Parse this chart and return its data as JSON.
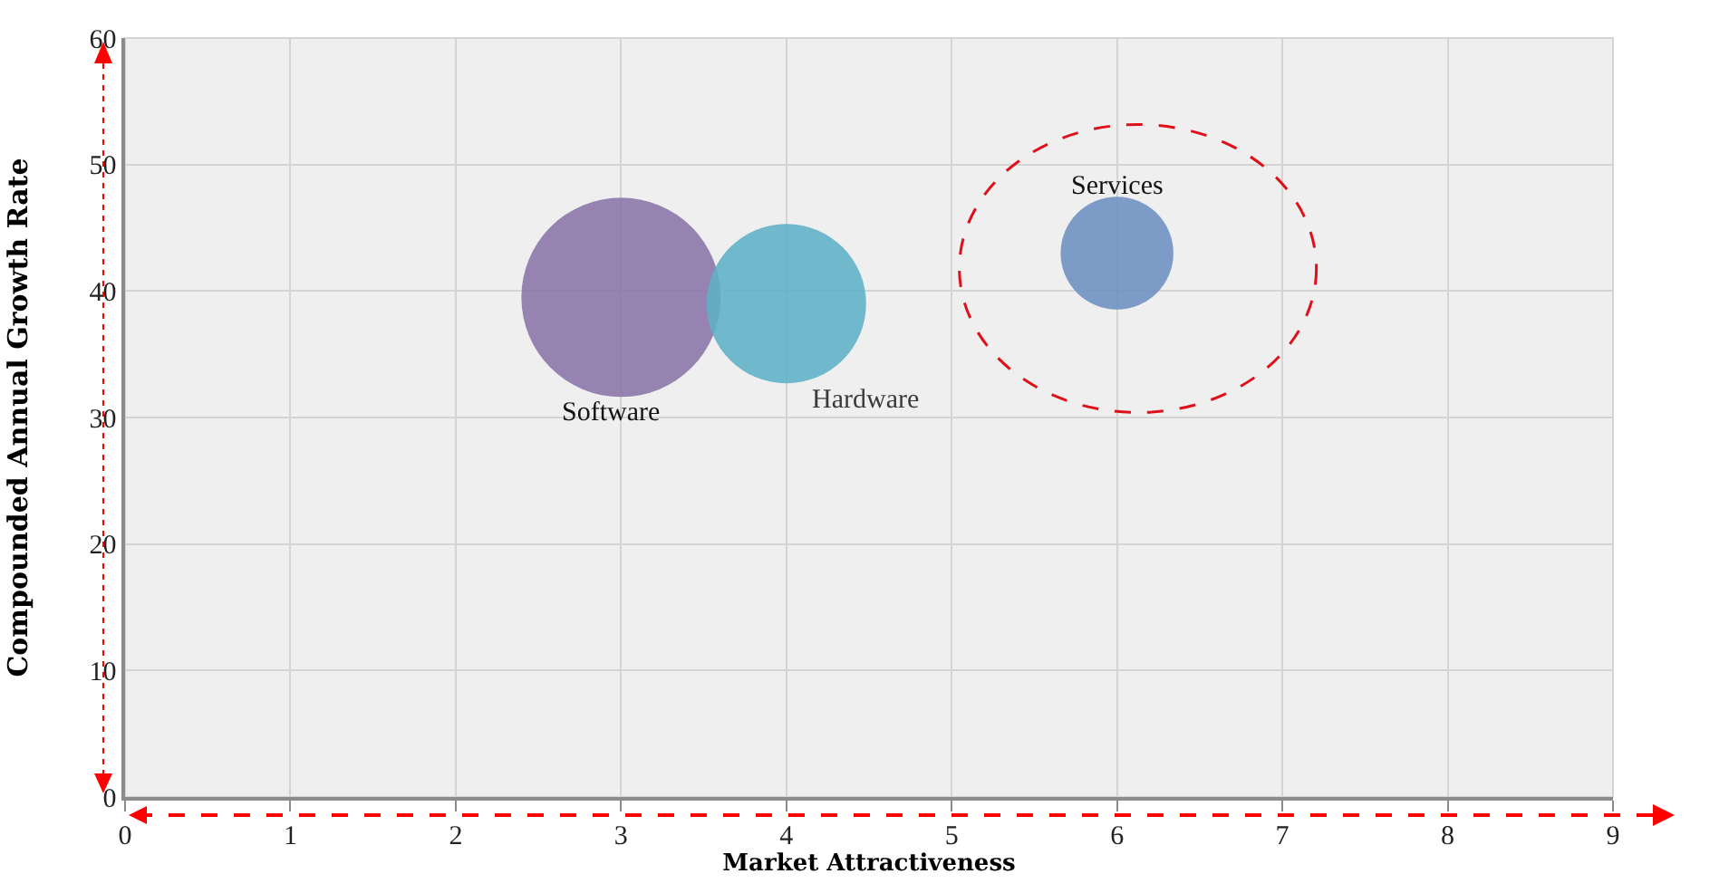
{
  "chart_data": {
    "type": "bubble",
    "xlabel": "Market Attractiveness",
    "ylabel": "Compounded Annual Growth Rate",
    "series": [
      {
        "name": "Software",
        "color": "#8b74a8",
        "x": [
          3
        ],
        "values": [
          39.5
        ],
        "sizes": [
          1
        ]
      },
      {
        "name": "Hardware",
        "color": "#5eb1c6",
        "x": [
          4
        ],
        "values": [
          39
        ],
        "sizes": [
          0.64
        ]
      },
      {
        "name": "Services",
        "color": "#6c8fc2",
        "x": [
          6
        ],
        "values": [
          43
        ],
        "sizes": [
          0.32
        ]
      }
    ],
    "xlim": [
      0,
      9
    ],
    "xticks": [
      0,
      1,
      2,
      3,
      4,
      5,
      6,
      7,
      8,
      9
    ],
    "ylim": [
      0,
      60
    ],
    "yticks": [
      0,
      10,
      20,
      30,
      40,
      50,
      60
    ],
    "grid": true,
    "legend": false
  }
}
